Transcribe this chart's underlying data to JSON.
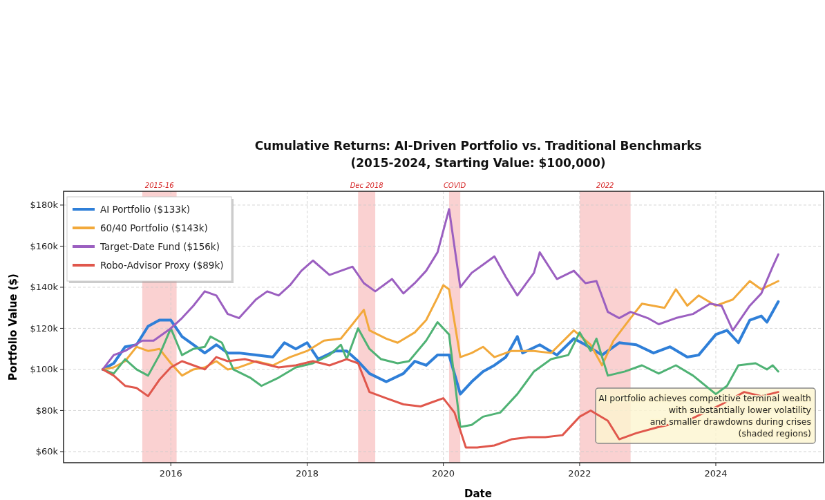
{
  "chart_data": {
    "type": "line",
    "title": "Cumulative Returns: AI-Driven Portfolio vs. Traditional Benchmarks\n(2015-2024, Starting Value: $100,000)",
    "xlabel": "Date",
    "ylabel": "Portfolio Value ($)",
    "xlim": [
      "2014-06-05",
      "2025-08-01"
    ],
    "xticks": [
      "2016",
      "2018",
      "2020",
      "2022",
      "2024"
    ],
    "ylim": [
      54.6,
      186.7
    ],
    "yticks": [
      {
        "value": 60,
        "label": "$60k"
      },
      {
        "value": 80,
        "label": "$80k"
      },
      {
        "value": 100,
        "label": "$100k"
      },
      {
        "value": 120,
        "label": "$120k"
      },
      {
        "value": 140,
        "label": "$140k"
      },
      {
        "value": 160,
        "label": "$160k"
      },
      {
        "value": 180,
        "label": "$180k"
      }
    ],
    "grid": true,
    "legend": "top left",
    "bands": [
      {
        "axis": "x",
        "from": "2015-08",
        "to": "2016-02",
        "label": "2015-16",
        "color": "#f5a3a3"
      },
      {
        "axis": "x",
        "from": "2018-10",
        "to": "2019-01",
        "label": "Dec 2018",
        "color": "#f5a3a3"
      },
      {
        "axis": "x",
        "from": "2020-02",
        "to": "2020-04",
        "label": "COVID",
        "color": "#f5a3a3"
      },
      {
        "axis": "x",
        "from": "2022-01",
        "to": "2022-10",
        "label": "2022",
        "color": "#f5a3a3"
      }
    ],
    "annotations": [
      "AI portfolio achieves competitive terminal wealth\nwith substantially lower volatility\nand smaller drawdowns during crises\n(shaded regions)"
    ],
    "series": [
      {
        "name": "AI Portfolio ($133k)",
        "color": "#2f7fd8",
        "x": [
          "2015-01",
          "2015-03",
          "2015-05",
          "2015-07",
          "2015-09",
          "2015-11",
          "2016-01",
          "2016-03",
          "2016-05",
          "2016-07",
          "2016-09",
          "2016-11",
          "2017-01",
          "2017-04",
          "2017-07",
          "2017-09",
          "2017-11",
          "2018-01",
          "2018-03",
          "2018-06",
          "2018-08",
          "2018-10",
          "2018-12",
          "2019-03",
          "2019-06",
          "2019-08",
          "2019-10",
          "2019-12",
          "2020-02",
          "2020-04",
          "2020-06",
          "2020-08",
          "2020-10",
          "2020-12",
          "2021-02",
          "2021-03",
          "2021-06",
          "2021-09",
          "2021-12",
          "2022-02",
          "2022-05",
          "2022-08",
          "2022-11",
          "2023-02",
          "2023-05",
          "2023-08",
          "2023-10",
          "2024-01",
          "2024-03",
          "2024-05",
          "2024-07",
          "2024-09",
          "2024-10",
          "2024-12"
        ],
        "values": [
          100,
          103,
          111,
          112,
          121,
          124,
          124,
          116,
          112,
          108,
          112,
          108,
          108,
          107,
          106,
          113,
          110,
          113,
          105,
          109,
          109,
          104,
          98,
          94,
          98,
          104,
          102,
          107,
          107,
          88,
          94,
          99,
          102,
          106,
          116,
          108,
          112,
          107,
          115,
          112,
          107,
          113,
          112,
          108,
          111,
          106,
          107,
          117,
          119,
          113,
          124,
          126,
          123,
          133
        ]
      },
      {
        "name": "60/40 Portfolio ($143k)",
        "color": "#f2a93b",
        "x": [
          "2015-01",
          "2015-03",
          "2015-05",
          "2015-07",
          "2015-09",
          "2015-11",
          "2016-01",
          "2016-03",
          "2016-05",
          "2016-07",
          "2016-09",
          "2016-11",
          "2017-01",
          "2017-04",
          "2017-07",
          "2017-10",
          "2018-01",
          "2018-04",
          "2018-07",
          "2018-09",
          "2018-11",
          "2018-12",
          "2019-03",
          "2019-05",
          "2019-08",
          "2019-10",
          "2019-12",
          "2020-01",
          "2020-02",
          "2020-04",
          "2020-06",
          "2020-08",
          "2020-10",
          "2021-01",
          "2021-05",
          "2021-08",
          "2021-12",
          "2022-03",
          "2022-05",
          "2022-07",
          "2022-10",
          "2022-12",
          "2023-04",
          "2023-06",
          "2023-08",
          "2023-10",
          "2024-01",
          "2024-04",
          "2024-07",
          "2024-09",
          "2024-12"
        ],
        "values": [
          100,
          101,
          104,
          111,
          109,
          110,
          103,
          97,
          100,
          101,
          104,
          100,
          101,
          104,
          102,
          106,
          109,
          114,
          115,
          122,
          129,
          119,
          115,
          113,
          118,
          124,
          135,
          141,
          139,
          106,
          108,
          111,
          106,
          109,
          109,
          108,
          119,
          112,
          102,
          114,
          125,
          132,
          130,
          139,
          131,
          136,
          131,
          134,
          143,
          139,
          143
        ]
      },
      {
        "color": "#4fb274",
        "x": [
          "2015-01",
          "2015-03",
          "2015-05",
          "2015-07",
          "2015-09",
          "2015-11",
          "2016-01",
          "2016-03",
          "2016-05",
          "2016-07",
          "2016-08",
          "2016-10",
          "2016-12",
          "2017-03",
          "2017-05",
          "2017-08",
          "2017-11",
          "2018-02",
          "2018-05",
          "2018-07",
          "2018-08",
          "2018-10",
          "2018-12",
          "2019-02",
          "2019-05",
          "2019-07",
          "2019-10",
          "2019-12",
          "2020-02",
          "2020-04",
          "2020-06",
          "2020-08",
          "2020-11",
          "2021-02",
          "2021-05",
          "2021-08",
          "2021-11",
          "2022-01",
          "2022-03",
          "2022-04",
          "2022-06",
          "2022-09",
          "2022-12",
          "2023-03",
          "2023-06",
          "2023-09",
          "2024-01",
          "2024-03",
          "2024-05",
          "2024-08",
          "2024-10",
          "2024-11",
          "2024-12"
        ],
        "values": [
          100,
          98,
          105,
          100,
          97,
          107,
          120,
          107,
          110,
          111,
          116,
          113,
          100,
          96,
          92,
          96,
          101,
          103,
          107,
          112,
          105,
          120,
          110,
          105,
          103,
          104,
          114,
          123,
          117,
          72,
          73,
          77,
          79,
          88,
          99,
          105,
          107,
          118,
          109,
          115,
          97,
          99,
          102,
          98,
          102,
          97,
          88,
          92,
          102,
          103,
          100,
          102,
          99
        ]
      },
      {
        "name": "Target-Date Fund ($156k)",
        "color": "#9b5fc0",
        "x": [
          "2015-01",
          "2015-03",
          "2015-05",
          "2015-08",
          "2015-10",
          "2016-01",
          "2016-03",
          "2016-05",
          "2016-07",
          "2016-09",
          "2016-11",
          "2017-01",
          "2017-04",
          "2017-06",
          "2017-08",
          "2017-10",
          "2017-12",
          "2018-02",
          "2018-05",
          "2018-07",
          "2018-09",
          "2018-11",
          "2019-01",
          "2019-04",
          "2019-06",
          "2019-08",
          "2019-10",
          "2019-12",
          "2020-02",
          "2020-04",
          "2020-06",
          "2020-08",
          "2020-10",
          "2020-12",
          "2021-02",
          "2021-05",
          "2021-06",
          "2021-09",
          "2021-12",
          "2022-02",
          "2022-04",
          "2022-06",
          "2022-08",
          "2022-10",
          "2023-01",
          "2023-03",
          "2023-06",
          "2023-09",
          "2023-12",
          "2024-02",
          "2024-04",
          "2024-07",
          "2024-09",
          "2024-11",
          "2024-12"
        ],
        "values": [
          100,
          107,
          109,
          114,
          114,
          120,
          125,
          131,
          138,
          136,
          127,
          125,
          134,
          138,
          136,
          141,
          148,
          153,
          146,
          148,
          150,
          142,
          138,
          144,
          137,
          142,
          148,
          157,
          178,
          140,
          147,
          151,
          155,
          145,
          136,
          147,
          157,
          144,
          148,
          142,
          143,
          128,
          125,
          128,
          125,
          122,
          125,
          127,
          132,
          131,
          119,
          131,
          137,
          150,
          156
        ]
      },
      {
        "name": "Robo-Advisor Proxy ($89k)",
        "color": "#e0574c",
        "x": [
          "2015-01",
          "2015-03",
          "2015-05",
          "2015-07",
          "2015-09",
          "2015-11",
          "2016-01",
          "2016-03",
          "2016-05",
          "2016-07",
          "2016-09",
          "2016-11",
          "2017-02",
          "2017-05",
          "2017-08",
          "2017-11",
          "2018-02",
          "2018-05",
          "2018-08",
          "2018-10",
          "2018-12",
          "2019-03",
          "2019-06",
          "2019-09",
          "2019-11",
          "2020-01",
          "2020-03",
          "2020-05",
          "2020-07",
          "2020-10",
          "2021-01",
          "2021-04",
          "2021-07",
          "2021-10",
          "2022-01",
          "2022-03",
          "2022-06",
          "2022-08",
          "2022-11",
          "2023-03",
          "2023-08",
          "2023-11",
          "2024-02",
          "2024-06",
          "2024-09",
          "2024-12"
        ],
        "values": [
          100,
          97,
          92,
          91,
          87,
          95,
          101,
          104,
          102,
          100,
          106,
          104,
          105,
          103,
          101,
          102,
          104,
          102,
          105,
          103,
          89,
          86,
          83,
          82,
          84,
          86,
          79,
          62,
          62,
          63,
          66,
          67,
          67,
          68,
          77,
          80,
          75,
          66,
          69,
          72,
          75,
          79,
          83,
          89,
          87,
          89
        ]
      }
    ]
  }
}
